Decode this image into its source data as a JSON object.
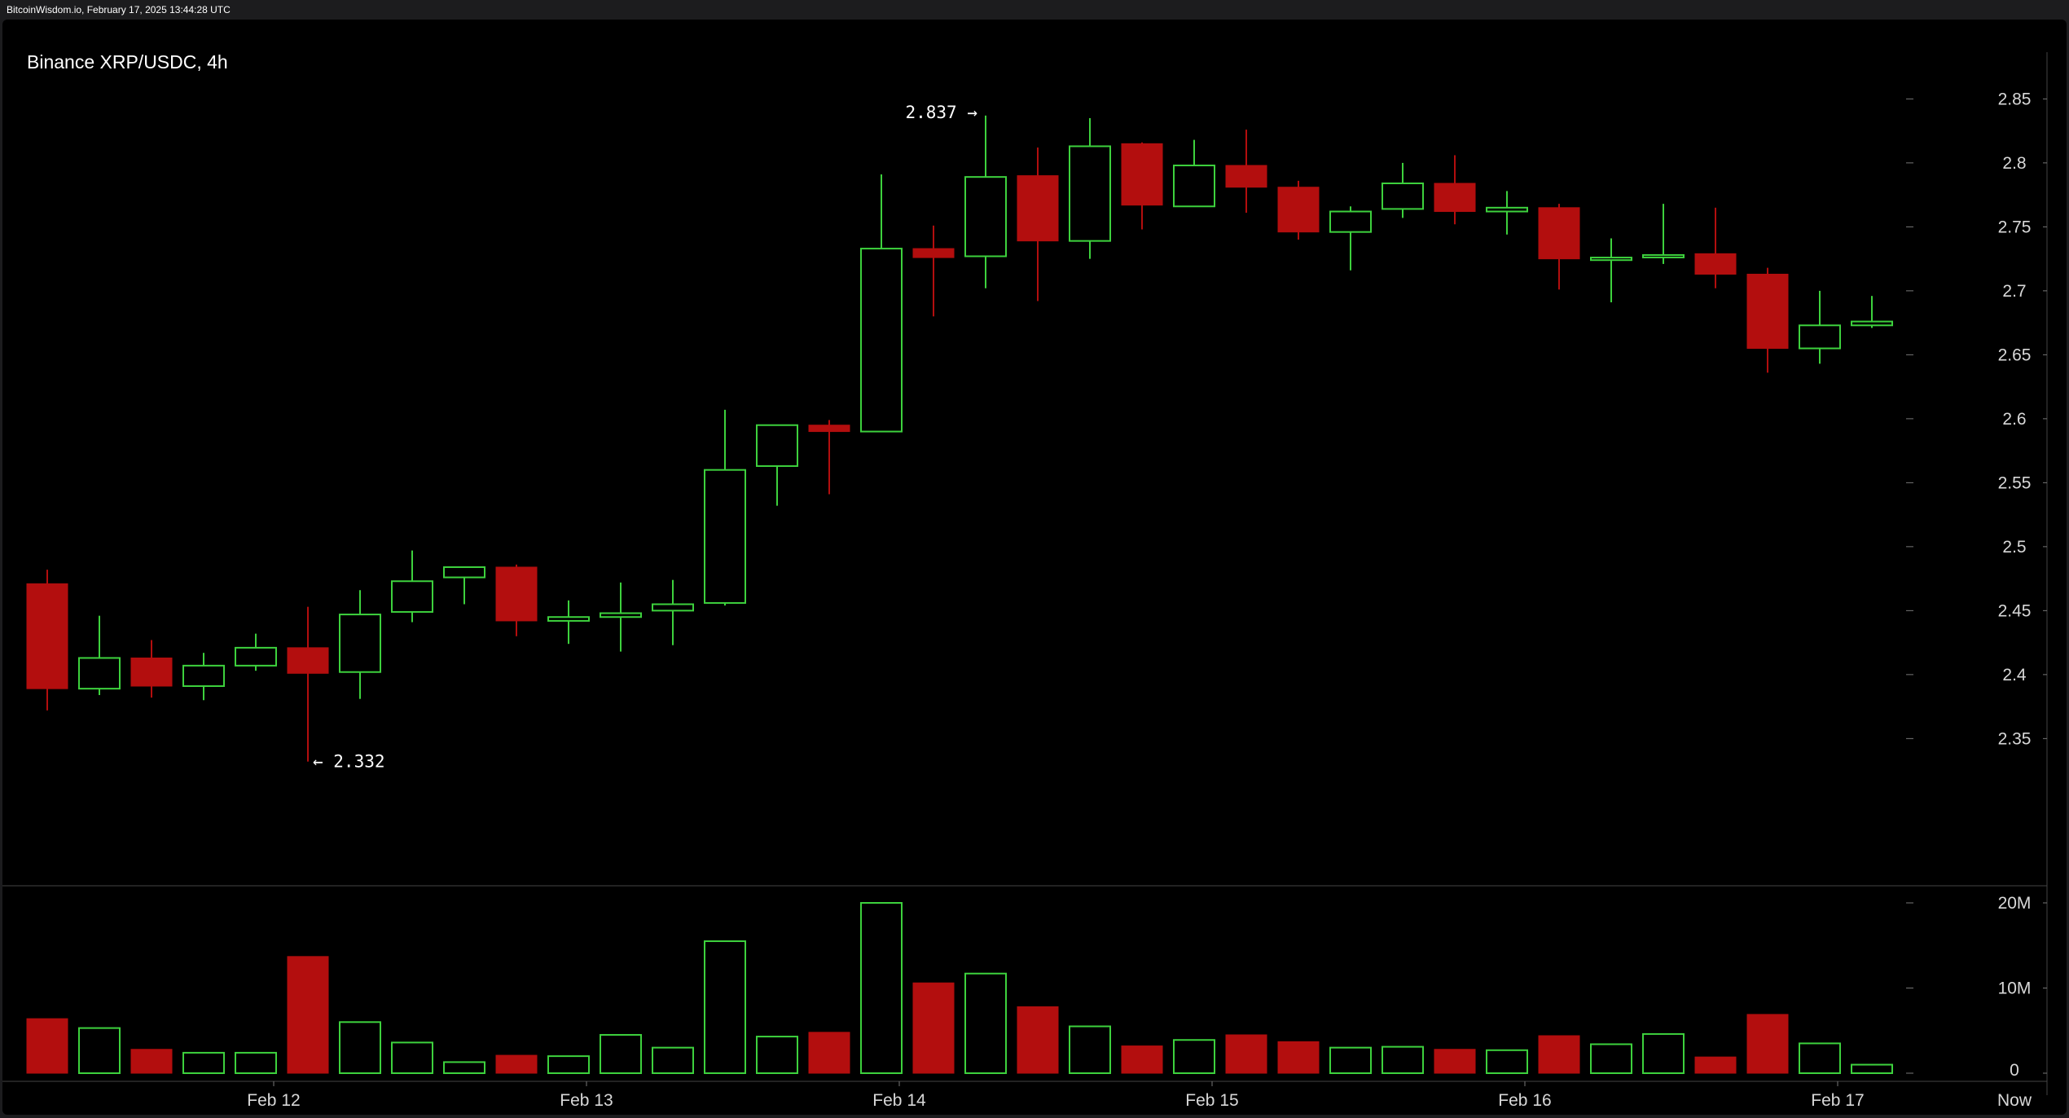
{
  "header": {
    "text": "BitcoinWisdom.io, February 17, 2025 13:44:28 UTC"
  },
  "colors": {
    "up": "#3dd13d",
    "down": "#b30e0e",
    "background": "#000000",
    "grid": "#444444",
    "text": "#d8d8d8"
  },
  "chart_data": {
    "type": "candlestick",
    "title": "Binance XRP/USDC, 4h",
    "interval": "4h",
    "price_ylim": [
      2.305,
      2.87
    ],
    "price_ticks": [
      "2.85",
      "2.8",
      "2.75",
      "2.7",
      "2.65",
      "2.6",
      "2.55",
      "2.5",
      "2.45",
      "2.4",
      "2.35"
    ],
    "volume_ylim": [
      0,
      20000000
    ],
    "volume_ticks": [
      {
        "value": 20000000,
        "label": "20M"
      },
      {
        "value": 10000000,
        "label": "10M"
      },
      {
        "value": 0,
        "label": "0"
      }
    ],
    "x_labels": [
      {
        "label": "Feb 12",
        "index": 4.5
      },
      {
        "label": "Feb 13",
        "index": 10.5
      },
      {
        "label": "Feb 14",
        "index": 16.5
      },
      {
        "label": "Feb 15",
        "index": 22.5
      },
      {
        "label": "Feb 16",
        "index": 28.5
      },
      {
        "label": "Feb 17",
        "index": 34.5
      }
    ],
    "now_label": "Now",
    "annotations": [
      {
        "text": "2.837 →",
        "index": 18,
        "value": 2.837,
        "side": "left"
      },
      {
        "text": "← 2.332",
        "index": 5,
        "value": 2.332,
        "side": "right"
      }
    ],
    "candles": [
      {
        "o": 2.471,
        "h": 2.482,
        "l": 2.372,
        "c": 2.389,
        "v": 6400000
      },
      {
        "o": 2.389,
        "h": 2.446,
        "l": 2.384,
        "c": 2.413,
        "v": 5300000
      },
      {
        "o": 2.413,
        "h": 2.427,
        "l": 2.382,
        "c": 2.391,
        "v": 2800000
      },
      {
        "o": 2.391,
        "h": 2.417,
        "l": 2.38,
        "c": 2.407,
        "v": 2400000
      },
      {
        "o": 2.407,
        "h": 2.432,
        "l": 2.403,
        "c": 2.421,
        "v": 2400000
      },
      {
        "o": 2.421,
        "h": 2.453,
        "l": 2.332,
        "c": 2.401,
        "v": 13700000
      },
      {
        "o": 2.402,
        "h": 2.466,
        "l": 2.381,
        "c": 2.447,
        "v": 6000000
      },
      {
        "o": 2.449,
        "h": 2.497,
        "l": 2.441,
        "c": 2.473,
        "v": 3600000
      },
      {
        "o": 2.476,
        "h": 2.484,
        "l": 2.455,
        "c": 2.484,
        "v": 1300000
      },
      {
        "o": 2.484,
        "h": 2.486,
        "l": 2.43,
        "c": 2.442,
        "v": 2100000
      },
      {
        "o": 2.442,
        "h": 2.458,
        "l": 2.424,
        "c": 2.445,
        "v": 2000000
      },
      {
        "o": 2.445,
        "h": 2.472,
        "l": 2.418,
        "c": 2.448,
        "v": 4500000
      },
      {
        "o": 2.45,
        "h": 2.474,
        "l": 2.423,
        "c": 2.455,
        "v": 3000000
      },
      {
        "o": 2.456,
        "h": 2.607,
        "l": 2.454,
        "c": 2.56,
        "v": 15500000
      },
      {
        "o": 2.563,
        "h": 2.595,
        "l": 2.532,
        "c": 2.595,
        "v": 4300000
      },
      {
        "o": 2.595,
        "h": 2.599,
        "l": 2.541,
        "c": 2.59,
        "v": 4800000
      },
      {
        "o": 2.59,
        "h": 2.791,
        "l": 2.59,
        "c": 2.733,
        "v": 20000000
      },
      {
        "o": 2.733,
        "h": 2.751,
        "l": 2.68,
        "c": 2.726,
        "v": 10600000
      },
      {
        "o": 2.727,
        "h": 2.837,
        "l": 2.702,
        "c": 2.789,
        "v": 11700000
      },
      {
        "o": 2.79,
        "h": 2.812,
        "l": 2.692,
        "c": 2.739,
        "v": 7800000
      },
      {
        "o": 2.739,
        "h": 2.835,
        "l": 2.725,
        "c": 2.813,
        "v": 5500000
      },
      {
        "o": 2.815,
        "h": 2.816,
        "l": 2.748,
        "c": 2.767,
        "v": 3200000
      },
      {
        "o": 2.766,
        "h": 2.818,
        "l": 2.766,
        "c": 2.798,
        "v": 3900000
      },
      {
        "o": 2.798,
        "h": 2.826,
        "l": 2.761,
        "c": 2.781,
        "v": 4500000
      },
      {
        "o": 2.781,
        "h": 2.786,
        "l": 2.74,
        "c": 2.746,
        "v": 3700000
      },
      {
        "o": 2.746,
        "h": 2.766,
        "l": 2.716,
        "c": 2.762,
        "v": 3000000
      },
      {
        "o": 2.764,
        "h": 2.8,
        "l": 2.757,
        "c": 2.784,
        "v": 3100000
      },
      {
        "o": 2.784,
        "h": 2.806,
        "l": 2.752,
        "c": 2.762,
        "v": 2800000
      },
      {
        "o": 2.762,
        "h": 2.778,
        "l": 2.744,
        "c": 2.765,
        "v": 2700000
      },
      {
        "o": 2.765,
        "h": 2.768,
        "l": 2.701,
        "c": 2.725,
        "v": 4400000
      },
      {
        "o": 2.724,
        "h": 2.741,
        "l": 2.691,
        "c": 2.726,
        "v": 3400000
      },
      {
        "o": 2.727,
        "h": 2.768,
        "l": 2.721,
        "c": 2.728,
        "v": 4600000
      },
      {
        "o": 2.729,
        "h": 2.765,
        "l": 2.702,
        "c": 2.713,
        "v": 1900000
      },
      {
        "o": 2.713,
        "h": 2.718,
        "l": 2.636,
        "c": 2.655,
        "v": 6900000
      },
      {
        "o": 2.655,
        "h": 2.7,
        "l": 2.643,
        "c": 2.673,
        "v": 3500000
      },
      {
        "o": 2.673,
        "h": 2.696,
        "l": 2.671,
        "c": 2.676,
        "v": 1000000
      }
    ]
  }
}
